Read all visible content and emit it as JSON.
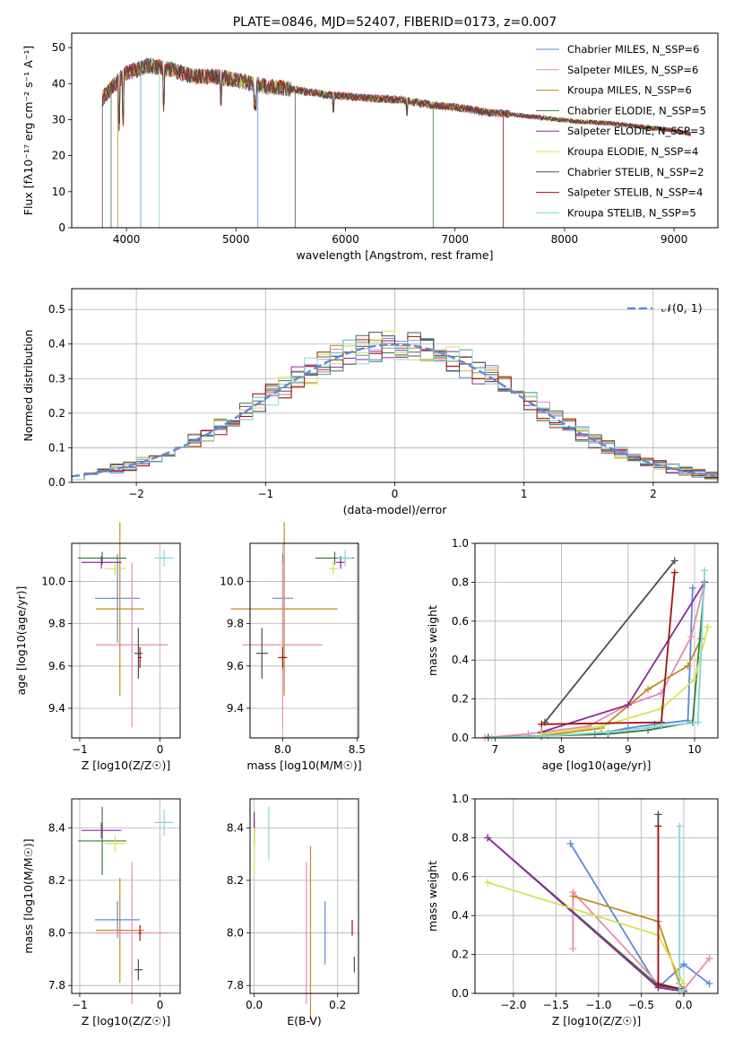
{
  "chart_data": [
    {
      "id": "spectrum",
      "type": "line",
      "title": "PLATE=0846, MJD=52407, FIBERID=0173, z=0.007",
      "xlabel": "wavelength [Angstrom, rest frame]",
      "ylabel": "Flux [fλ10⁻¹⁷ erg cm⁻² s⁻¹ A⁻¹]",
      "xlim": [
        3500,
        9400
      ],
      "ylim": [
        0,
        54
      ],
      "xticks": [
        4000,
        5000,
        6000,
        7000,
        8000,
        9000
      ],
      "yticks": [
        0,
        10,
        20,
        30,
        40,
        50
      ],
      "legend_position": "top-right",
      "series": [
        {
          "name": "Chabrier MILES, N_SSP=6",
          "color": "#5b8ad6"
        },
        {
          "name": "Salpeter MILES, N_SSP=6",
          "color": "#e78ab6"
        },
        {
          "name": "Kroupa MILES, N_SSP=6",
          "color": "#c48a28"
        },
        {
          "name": "Chabrier ELODIE, N_SSP=5",
          "color": "#3d7a3d"
        },
        {
          "name": "Salpeter ELODIE, N_SSP=3",
          "color": "#8b2a9b"
        },
        {
          "name": "Kroupa ELODIE, N_SSP=4",
          "color": "#d6e252"
        },
        {
          "name": "Chabrier STELIB, N_SSP=2",
          "color": "#4d4d4d"
        },
        {
          "name": "Salpeter STELIB, N_SSP=4",
          "color": "#a31212"
        },
        {
          "name": "Kroupa STELIB, N_SSP=5",
          "color": "#7fd8d8"
        }
      ],
      "continuum": {
        "x": [
          3780,
          3900,
          4000,
          4100,
          4200,
          4400,
          4600,
          4800,
          5000,
          5200,
          5500,
          5800,
          6000,
          6200,
          6500,
          6800,
          7000,
          7300,
          7500,
          7800,
          8100,
          8400,
          8700,
          9000,
          9150
        ],
        "y": [
          36,
          40,
          43,
          44,
          45,
          44,
          42,
          42,
          41,
          39.5,
          38.5,
          37,
          36.5,
          36,
          35.5,
          34,
          33.5,
          32,
          31.5,
          30.5,
          29.5,
          29,
          28,
          27,
          26
        ]
      }
    },
    {
      "id": "residuals",
      "type": "line",
      "xlabel": "(data-model)/error",
      "ylabel": "Normed distribution",
      "xlim": [
        -2.5,
        2.5
      ],
      "ylim": [
        0,
        0.56
      ],
      "xticks": [
        -2,
        -1,
        0,
        1,
        2
      ],
      "yticks": [
        0.0,
        0.1,
        0.2,
        0.3,
        0.4,
        0.5
      ],
      "legend_position": "top-right",
      "legend_entry": "𝒩(0, 1)",
      "gaussian": {
        "name": "𝒩(0, 1)",
        "mean": 0,
        "sigma": 1,
        "color": "#5b8ad6"
      },
      "bin_width": 0.1
    },
    {
      "id": "age-vs-Z",
      "type": "scatter",
      "xlabel": "Z [log10(Z/Z☉)]",
      "ylabel": "age  [log10(age/yr)]",
      "xlim": [
        -1.1,
        0.25
      ],
      "ylim": [
        9.26,
        10.18
      ],
      "xticks": [
        -1,
        0
      ],
      "yticks": [
        9.4,
        9.6,
        9.8,
        10.0
      ],
      "points": [
        {
          "series": 0,
          "x": -0.53,
          "y": 9.92,
          "xerr": 0.28,
          "yerr": 0.21
        },
        {
          "series": 1,
          "x": -0.35,
          "y": 9.7,
          "xerr": 0.45,
          "yerr": 0.39
        },
        {
          "series": 2,
          "x": -0.5,
          "y": 9.87,
          "xerr": 0.3,
          "yerr": 0.41
        },
        {
          "series": 3,
          "x": -0.72,
          "y": 10.11,
          "xerr": 0.3,
          "yerr": 0.03
        },
        {
          "series": 4,
          "x": -0.73,
          "y": 10.09,
          "xerr": 0.25,
          "yerr": 0.03
        },
        {
          "series": 5,
          "x": -0.56,
          "y": 10.06,
          "xerr": 0.13,
          "yerr": 0.03
        },
        {
          "series": 6,
          "x": -0.27,
          "y": 9.66,
          "xerr": 0.05,
          "yerr": 0.12
        },
        {
          "series": 7,
          "x": -0.25,
          "y": 9.64,
          "xerr": 0.02,
          "yerr": 0.05
        },
        {
          "series": 8,
          "x": 0.05,
          "y": 10.11,
          "xerr": 0.12,
          "yerr": 0.04
        }
      ]
    },
    {
      "id": "age-vs-mass",
      "type": "scatter",
      "xlabel": "mass [log10(M/M☉)]",
      "xlim": [
        7.78,
        8.51
      ],
      "ylim": [
        9.26,
        10.18
      ],
      "xticks": [
        8.0,
        8.5
      ],
      "yticks": [
        9.4,
        9.6,
        9.8,
        10.0
      ],
      "points": [
        {
          "series": 0,
          "x": 8.0,
          "y": 9.92,
          "xerr": 0.07,
          "yerr": 0.21
        },
        {
          "series": 1,
          "x": 8.0,
          "y": 9.7,
          "xerr": 0.27,
          "yerr": 0.39
        },
        {
          "series": 2,
          "x": 8.01,
          "y": 9.87,
          "xerr": 0.36,
          "yerr": 0.41
        },
        {
          "series": 3,
          "x": 8.35,
          "y": 10.11,
          "xerr": 0.13,
          "yerr": 0.03
        },
        {
          "series": 4,
          "x": 8.39,
          "y": 10.09,
          "xerr": 0.03,
          "yerr": 0.03
        },
        {
          "series": 5,
          "x": 8.34,
          "y": 10.06,
          "xerr": 0.03,
          "yerr": 0.03
        },
        {
          "series": 6,
          "x": 7.86,
          "y": 9.66,
          "xerr": 0.04,
          "yerr": 0.12
        },
        {
          "series": 7,
          "x": 8.0,
          "y": 9.64,
          "xerr": 0.03,
          "yerr": 0.05
        },
        {
          "series": 8,
          "x": 8.42,
          "y": 10.11,
          "xerr": 0.05,
          "yerr": 0.04
        }
      ]
    },
    {
      "id": "weight-vs-age",
      "type": "line",
      "xlabel": "age  [log10(age/yr)]",
      "ylabel": "mass weight",
      "xlim": [
        6.7,
        10.35
      ],
      "ylim": [
        0,
        1.0
      ],
      "xticks": [
        7,
        8,
        9,
        10
      ],
      "yticks": [
        0.0,
        0.2,
        0.4,
        0.6,
        0.8,
        1.0
      ],
      "series_points": [
        {
          "series": 0,
          "x": [
            6.9,
            7.7,
            8.5,
            9.0,
            9.4,
            9.9,
            9.97
          ],
          "y": [
            0.002,
            0.01,
            0.02,
            0.05,
            0.07,
            0.09,
            0.77
          ]
        },
        {
          "series": 1,
          "x": [
            6.85,
            7.5,
            8.4,
            9.0,
            9.5,
            9.95,
            10.15
          ],
          "y": [
            0.002,
            0.02,
            0.06,
            0.17,
            0.23,
            0.52,
            0.8
          ]
        },
        {
          "series": 2,
          "x": [
            6.9,
            7.7,
            8.6,
            9.3,
            9.9,
            10.1
          ],
          "y": [
            0.002,
            0.01,
            0.05,
            0.25,
            0.37,
            0.51
          ]
        },
        {
          "series": 3,
          "x": [
            6.9,
            7.7,
            8.7,
            9.3,
            9.97,
            10.15
          ],
          "y": [
            0.002,
            0.01,
            0.02,
            0.04,
            0.08,
            0.8
          ]
        },
        {
          "series": 4,
          "x": [
            7.7,
            9.0,
            10.15
          ],
          "y": [
            0.03,
            0.17,
            0.8
          ]
        },
        {
          "series": 5,
          "x": [
            7.7,
            8.6,
            9.5,
            10.0,
            10.2
          ],
          "y": [
            0.02,
            0.06,
            0.15,
            0.3,
            0.57
          ]
        },
        {
          "series": 6,
          "x": [
            7.75,
            9.7
          ],
          "y": [
            0.08,
            0.91
          ]
        },
        {
          "series": 7,
          "x": [
            7.7,
            9.5,
            9.7
          ],
          "y": [
            0.07,
            0.08,
            0.85
          ]
        },
        {
          "series": 8,
          "x": [
            6.95,
            7.8,
            8.7,
            9.5,
            10.05,
            10.15
          ],
          "y": [
            0.002,
            0.01,
            0.03,
            0.06,
            0.08,
            0.86
          ]
        }
      ]
    },
    {
      "id": "mass-vs-Z",
      "type": "scatter",
      "xlabel": "Z [log10(Z/Z☉)]",
      "ylabel": "mass [log10(M/M☉)]",
      "xlim": [
        -1.1,
        0.25
      ],
      "ylim": [
        7.77,
        8.51
      ],
      "xticks": [
        -1,
        0
      ],
      "yticks": [
        7.8,
        8.0,
        8.2,
        8.4
      ],
      "points": [
        {
          "series": 0,
          "x": -0.53,
          "y": 8.05,
          "xerr": 0.28,
          "yerr": 0.07
        },
        {
          "series": 1,
          "x": -0.35,
          "y": 8.0,
          "xerr": 0.45,
          "yerr": 0.27
        },
        {
          "series": 2,
          "x": -0.5,
          "y": 8.01,
          "xerr": 0.3,
          "yerr": 0.2
        },
        {
          "series": 3,
          "x": -0.72,
          "y": 8.35,
          "xerr": 0.3,
          "yerr": 0.13
        },
        {
          "series": 4,
          "x": -0.73,
          "y": 8.39,
          "xerr": 0.25,
          "yerr": 0.03
        },
        {
          "series": 5,
          "x": -0.56,
          "y": 8.34,
          "xerr": 0.13,
          "yerr": 0.03
        },
        {
          "series": 6,
          "x": -0.27,
          "y": 7.86,
          "xerr": 0.05,
          "yerr": 0.04
        },
        {
          "series": 7,
          "x": -0.25,
          "y": 8.0,
          "xerr": 0.02,
          "yerr": 0.03
        },
        {
          "series": 8,
          "x": 0.05,
          "y": 8.42,
          "xerr": 0.12,
          "yerr": 0.05
        }
      ]
    },
    {
      "id": "mass-vs-ebv",
      "type": "scatter",
      "xlabel": "E(B-V)",
      "xlim": [
        -0.01,
        0.25
      ],
      "ylim": [
        7.77,
        8.51
      ],
      "xticks": [
        0.0,
        0.2
      ],
      "yticks": [
        7.8,
        8.0,
        8.2,
        8.4
      ],
      "points": [
        {
          "series": 0,
          "x": 0.17,
          "y": 8.0,
          "yerr": 0.12
        },
        {
          "series": 1,
          "x": 0.125,
          "y": 8.0,
          "yerr": 0.27
        },
        {
          "series": 2,
          "x": 0.135,
          "y": 8.0,
          "yerr": 0.33
        },
        {
          "series": 3,
          "x": 0.0,
          "y": 8.38,
          "yerr": 0.05
        },
        {
          "series": 4,
          "x": 0.0,
          "y": 8.42,
          "yerr": 0.04
        },
        {
          "series": 5,
          "x": 0.0,
          "y": 8.31,
          "yerr": 0.09
        },
        {
          "series": 6,
          "x": 0.24,
          "y": 7.88,
          "yerr": 0.03
        },
        {
          "series": 7,
          "x": 0.235,
          "y": 8.02,
          "yerr": 0.03
        },
        {
          "series": 8,
          "x": 0.035,
          "y": 8.38,
          "yerr": 0.1
        }
      ]
    },
    {
      "id": "weight-vs-Z",
      "type": "line",
      "xlabel": "Z [log10(Z/Z☉)]",
      "ylabel": "mass weight",
      "xlim": [
        -2.45,
        0.4
      ],
      "ylim": [
        0,
        1.0
      ],
      "xticks": [
        -2.0,
        -1.5,
        -1.0,
        -0.5,
        0.0
      ],
      "yticks": [
        0.0,
        0.2,
        0.4,
        0.6,
        0.8,
        1.0
      ],
      "series_points": [
        {
          "series": 0,
          "x": [
            -1.33,
            -0.3,
            0.0,
            0.3
          ],
          "y": [
            0.77,
            0.03,
            0.15,
            0.05
          ]
        },
        {
          "series": 1,
          "x": [
            -1.3,
            -1.3,
            -0.3,
            0.0,
            0.3
          ],
          "y": [
            0.23,
            0.52,
            0.05,
            0.02,
            0.18
          ]
        },
        {
          "series": 2,
          "x": [
            -1.3,
            -0.3,
            -0.05,
            0.0
          ],
          "y": [
            0.5,
            0.37,
            0.05,
            0.02
          ]
        },
        {
          "series": 3,
          "x": [
            -2.3,
            -0.3,
            0.0
          ],
          "y": [
            0.8,
            0.04,
            0.02
          ]
        },
        {
          "series": 4,
          "x": [
            -2.3,
            -0.3,
            0.0
          ],
          "y": [
            0.8,
            0.03,
            0.01
          ]
        },
        {
          "series": 5,
          "x": [
            -2.3,
            -0.3,
            0.0
          ],
          "y": [
            0.57,
            0.3,
            0.05
          ]
        },
        {
          "series": 6,
          "x": [
            -0.3,
            -0.3,
            0.0
          ],
          "y": [
            0.92,
            0.04,
            0.02
          ]
        },
        {
          "series": 7,
          "x": [
            -0.3,
            -0.3,
            0.0
          ],
          "y": [
            0.86,
            0.05,
            0.02
          ]
        },
        {
          "series": 8,
          "x": [
            -0.05,
            -0.05,
            0.0
          ],
          "y": [
            0.86,
            0.01,
            0.02
          ]
        }
      ]
    }
  ]
}
